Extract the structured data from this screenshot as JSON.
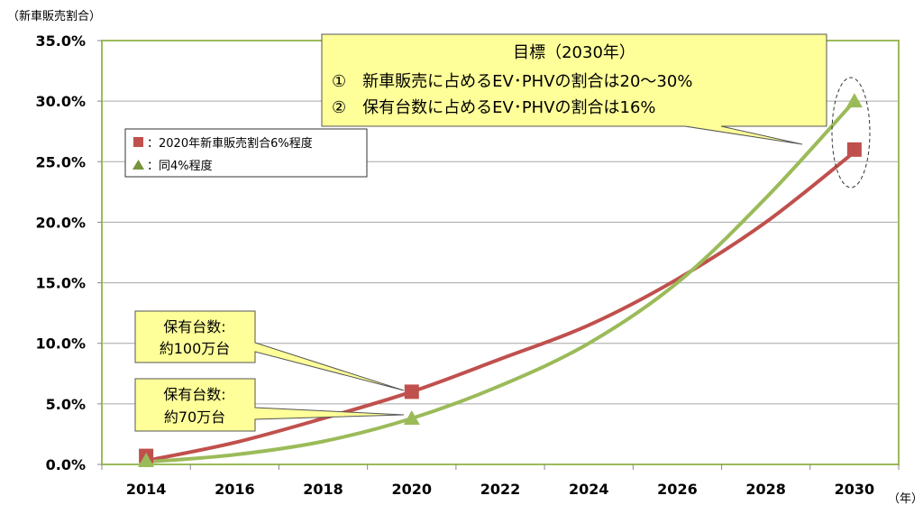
{
  "chart_data": {
    "type": "line",
    "ylabel": "（新車販売割合）",
    "xlabel": "（年）",
    "categories": [
      "2014",
      "2016",
      "2018",
      "2020",
      "2022",
      "2024",
      "2026",
      "2028",
      "2030"
    ],
    "x": [
      2014,
      2016,
      2018,
      2020,
      2022,
      2024,
      2026,
      2028,
      2030
    ],
    "ylim": [
      0,
      35
    ],
    "yticks": [
      "0.0%",
      "5.0%",
      "10.0%",
      "15.0%",
      "20.0%",
      "25.0%",
      "30.0%",
      "35.0%"
    ],
    "grid": true,
    "series": [
      {
        "name": "2020年新車販売割合6%程度",
        "legend_label": "：2020年新車販売割合6%程度",
        "color": "#c0504d",
        "marker": "square",
        "curve": [
          0.3,
          1.8,
          3.8,
          6.0,
          8.7,
          11.5,
          15.3,
          20.0,
          25.8
        ],
        "points": [
          {
            "x": 2014,
            "y": 0.7
          },
          {
            "x": 2020,
            "y": 6.0
          },
          {
            "x": 2030,
            "y": 26.0
          }
        ]
      },
      {
        "name": "同4%程度",
        "legend_label": "：同4%程度",
        "color": "#9bbb59",
        "marker": "triangle",
        "curve": [
          0.2,
          0.8,
          1.9,
          3.8,
          6.5,
          10.0,
          15.0,
          22.0,
          30.0
        ],
        "points": [
          {
            "x": 2014,
            "y": 0.3
          },
          {
            "x": 2020,
            "y": 3.8
          },
          {
            "x": 2030,
            "y": 30.0
          }
        ]
      }
    ],
    "legend_placement": "top-left",
    "annotations": {
      "target": {
        "title": "目標（2030年）",
        "line1": "①　新車販売に占めるEV･PHVの割合は20～30%",
        "line2": "②　保有台数に占めるEV･PHVの割合は16%"
      },
      "callout_100": {
        "line1": "保有台数:",
        "line2": "約100万台"
      },
      "callout_70": {
        "line1": "保有台数:",
        "line2": "約70万台"
      }
    }
  }
}
